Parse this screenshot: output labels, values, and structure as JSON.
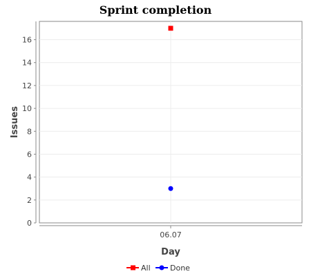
{
  "chart_data": {
    "type": "line",
    "title": "Sprint completion",
    "xlabel": "Day",
    "ylabel": "Issues",
    "categories": [
      "06.07"
    ],
    "ylim": [
      0,
      17.6
    ],
    "yticks": [
      0,
      2,
      4,
      6,
      8,
      10,
      12,
      14,
      16
    ],
    "grid": true,
    "legend_position": "bottom",
    "series": [
      {
        "name": "All",
        "values": [
          17
        ],
        "color": "#ff0000",
        "marker": "square"
      },
      {
        "name": "Done",
        "values": [
          3
        ],
        "color": "#0000ff",
        "marker": "circle"
      }
    ]
  }
}
